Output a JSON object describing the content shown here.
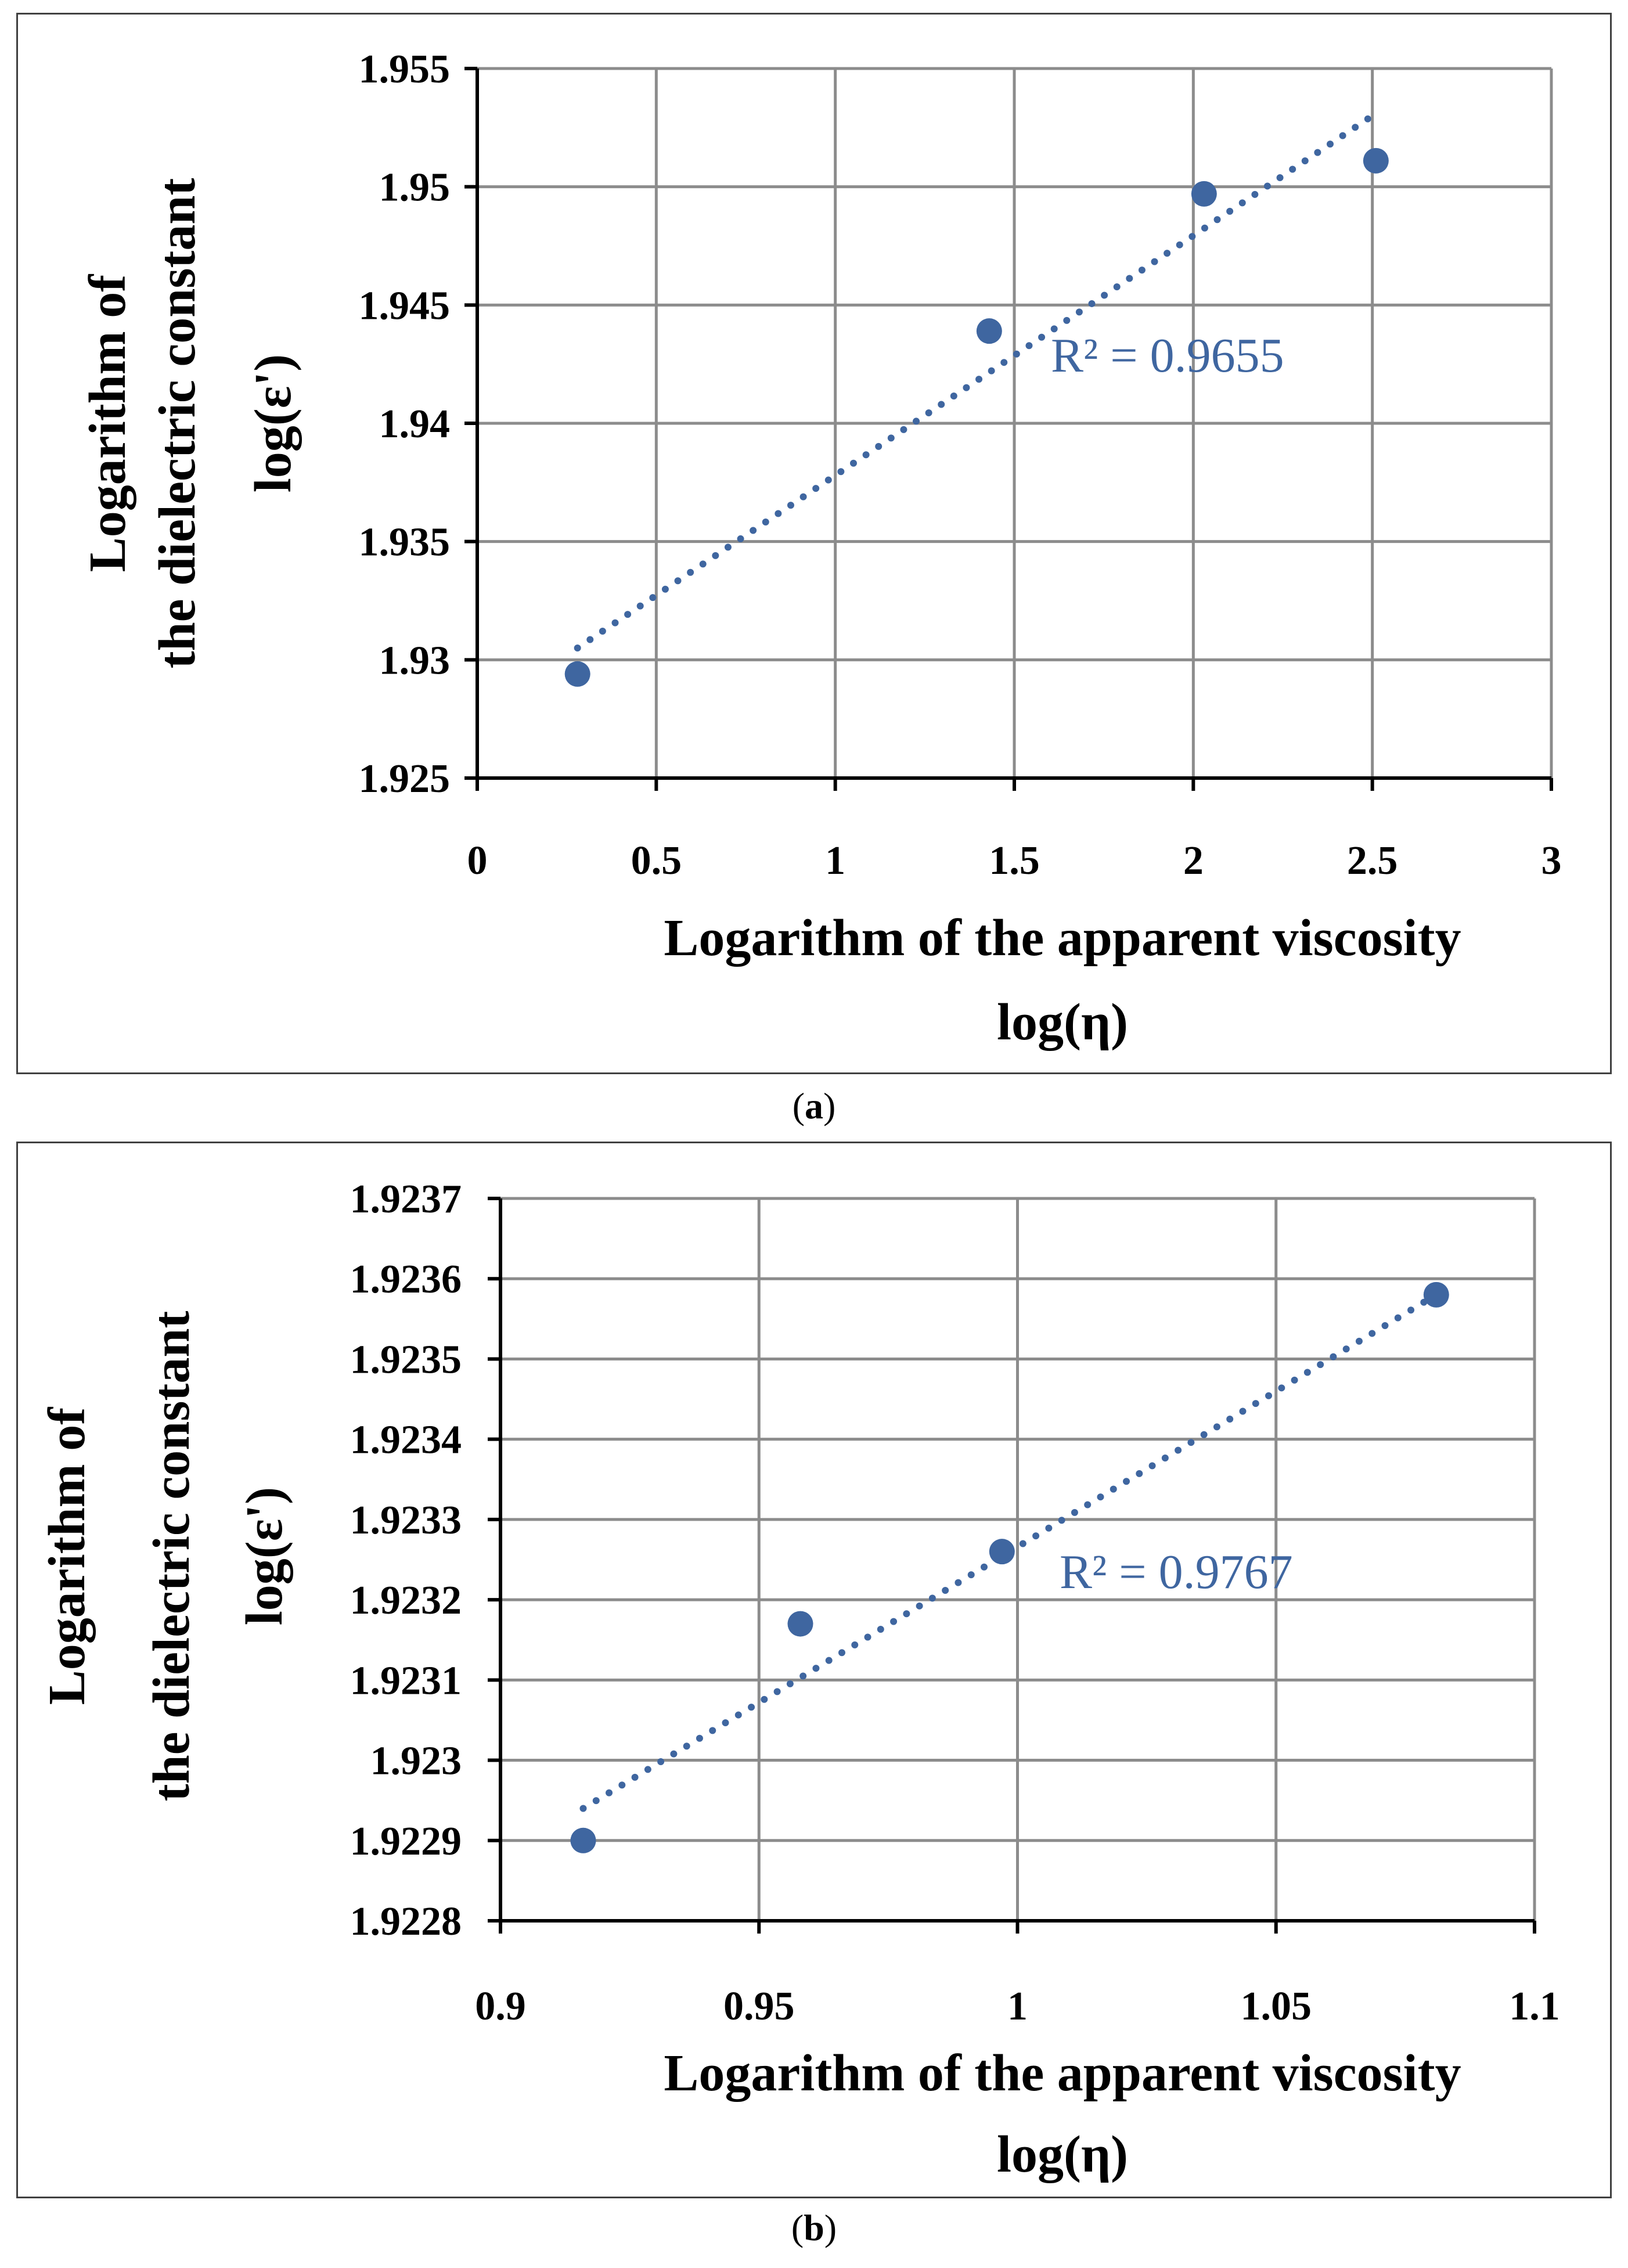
{
  "colors": {
    "series": "#3f66a0",
    "grid": "#8c8c8c",
    "axis": "#000000"
  },
  "captions": {
    "a": "a",
    "b": "b"
  },
  "chart_data": [
    {
      "id": "a",
      "type": "scatter",
      "xlabel_line1": "Logarithm of the apparent viscosity",
      "xlabel_line2": "log(η)",
      "ylabel_line1": "Logarithm of",
      "ylabel_line2": "the dielectric constant",
      "ylabel_line3": "log(ε')",
      "xlim": [
        0,
        3
      ],
      "ylim": [
        1.925,
        1.955
      ],
      "x_ticks": [
        "0",
        "0.5",
        "1",
        "1.5",
        "2",
        "2.5",
        "3"
      ],
      "y_ticks": [
        "1.925",
        "1.93",
        "1.935",
        "1.94",
        "1.945",
        "1.95",
        "1.955"
      ],
      "x_tick_values": [
        0,
        0.5,
        1,
        1.5,
        2,
        2.5,
        3
      ],
      "y_tick_values": [
        1.925,
        1.93,
        1.935,
        1.94,
        1.945,
        1.95,
        1.955
      ],
      "series": [
        {
          "name": "data",
          "x": [
            0.28,
            1.43,
            2.03,
            2.51
          ],
          "y": [
            1.9294,
            1.9439,
            1.9497,
            1.9511
          ]
        }
      ],
      "trendline": {
        "type": "linear",
        "x_start": 0.28,
        "y_start": 1.9305,
        "x_end": 2.5,
        "y_end": 1.953,
        "label": "R² = 0.9655"
      }
    },
    {
      "id": "b",
      "type": "scatter",
      "xlabel_line1": "Logarithm of the apparent viscosity",
      "xlabel_line2": "log(η)",
      "ylabel_line1": "Logarithm of",
      "ylabel_line2": "the dielectric constant",
      "ylabel_line3": "log(ε')",
      "xlim": [
        0.9,
        1.1
      ],
      "ylim": [
        1.9228,
        1.9237
      ],
      "x_ticks": [
        "0.9",
        "0.95",
        "1",
        "1.05",
        "1.1"
      ],
      "y_ticks": [
        "1.9228",
        "1.9229",
        "1.923",
        "1.9231",
        "1.9232",
        "1.9233",
        "1.9234",
        "1.9235",
        "1.9236",
        "1.9237"
      ],
      "x_tick_values": [
        0.9,
        0.95,
        1,
        1.05,
        1.1
      ],
      "y_tick_values": [
        1.9228,
        1.9229,
        1.923,
        1.9231,
        1.9232,
        1.9233,
        1.9234,
        1.9235,
        1.9236,
        1.9237
      ],
      "series": [
        {
          "name": "data",
          "x": [
            0.916,
            0.958,
            0.997,
            1.081
          ],
          "y": [
            1.9229,
            1.92317,
            1.92326,
            1.92358
          ]
        }
      ],
      "trendline": {
        "type": "linear",
        "x_start": 0.916,
        "y_start": 1.92294,
        "x_end": 1.081,
        "y_end": 1.92358,
        "label": "R² = 0.9767"
      }
    }
  ]
}
